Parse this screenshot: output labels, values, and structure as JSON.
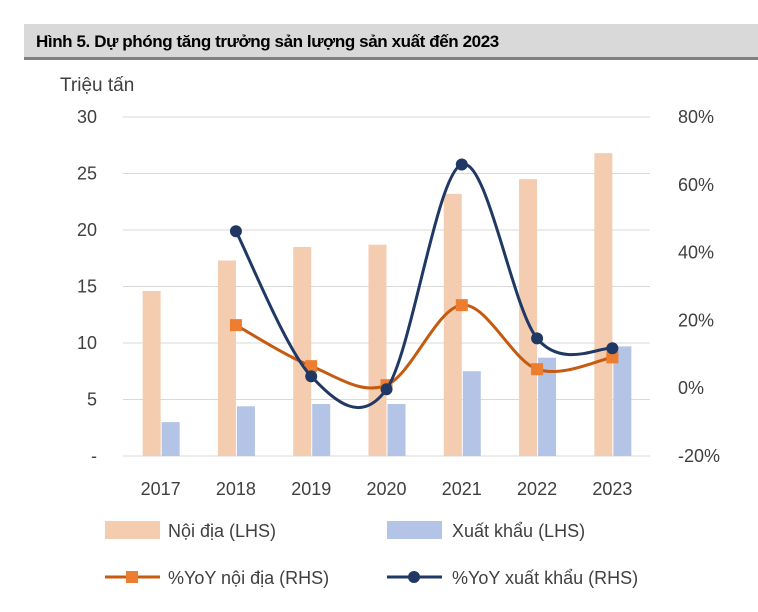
{
  "title": "Hình 5. Dự phóng tăng trưởng sản lượng sản xuất đến 2023",
  "chart_data": {
    "type": "bar+line",
    "title": "Hình 5. Dự phóng tăng trưởng sản lượng sản xuất đến 2023",
    "left_axis_unit": "Triệu tấn",
    "categories": [
      "2017",
      "2018",
      "2019",
      "2020",
      "2021",
      "2022",
      "2023"
    ],
    "left_ylim": [
      0,
      30
    ],
    "left_ticks": [
      "-",
      "5",
      "10",
      "15",
      "20",
      "25",
      "30"
    ],
    "right_ylim": [
      -20,
      80
    ],
    "right_ticks": [
      "-20%",
      "0%",
      "20%",
      "40%",
      "60%",
      "80%"
    ],
    "grid": true,
    "legend_position": "bottom",
    "series": [
      {
        "name": "Nội địa (LHS)",
        "type": "bar",
        "axis": "left",
        "color": "#f4cdb0",
        "values": [
          14.6,
          17.3,
          18.5,
          18.7,
          23.2,
          24.5,
          26.8
        ]
      },
      {
        "name": "Xuất khẩu (LHS)",
        "type": "bar",
        "axis": "left",
        "color": "#b4c4e6",
        "values": [
          3.0,
          4.4,
          4.6,
          4.6,
          7.5,
          8.7,
          9.7
        ]
      },
      {
        "name": "%YoY nội địa (RHS)",
        "type": "line",
        "axis": "right",
        "color": "#c55a11",
        "marker": "square",
        "values": [
          null,
          18.6,
          6.5,
          0.9,
          24.5,
          5.6,
          9.1
        ]
      },
      {
        "name": "%YoY xuất khẩu (RHS)",
        "type": "line",
        "axis": "right",
        "color": "#203864",
        "marker": "circle",
        "values": [
          null,
          46.3,
          3.5,
          -0.3,
          66.0,
          14.7,
          11.8
        ]
      }
    ]
  }
}
